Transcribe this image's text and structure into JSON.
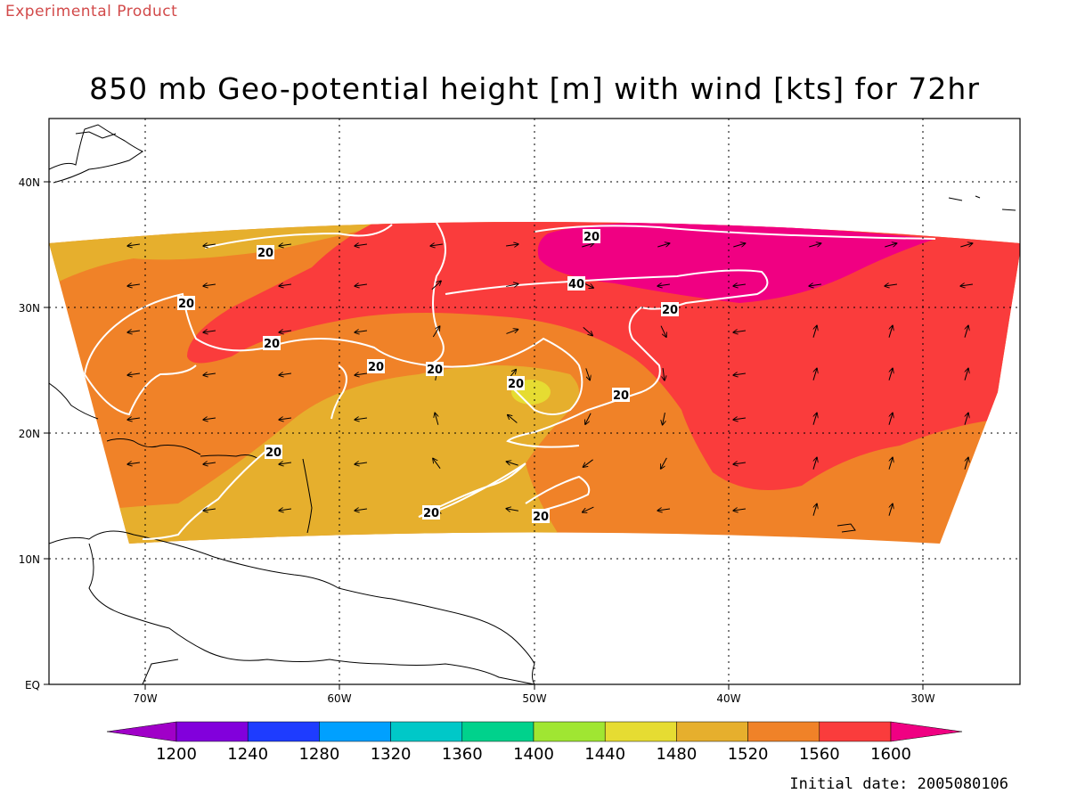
{
  "header": {
    "experimental": "Experimental Product",
    "title": "850 mb Geo-potential height [m] with wind [kts] for 72hr"
  },
  "footer": {
    "initial_date": "Initial date: 2005080106"
  },
  "axes": {
    "x_ticks": [
      "70W",
      "60W",
      "50W",
      "40W",
      "30W"
    ],
    "y_ticks": [
      "EQ",
      "10N",
      "20N",
      "30N",
      "40N"
    ],
    "lon_range": [
      -75,
      -25
    ],
    "lat_range": [
      0,
      45
    ],
    "grid": "dotted"
  },
  "colorbar": {
    "labels": [
      "1200",
      "1240",
      "1280",
      "1320",
      "1360",
      "1400",
      "1440",
      "1480",
      "1520",
      "1560",
      "1600"
    ],
    "colors": [
      "#a000c8",
      "#8200dc",
      "#1e3cff",
      "#00a0ff",
      "#00c8c8",
      "#00d28c",
      "#a0e632",
      "#e6dc32",
      "#e6af2d",
      "#f08228",
      "#fa3c3c",
      "#f00082"
    ]
  },
  "contour_labels": [
    "20",
    "20",
    "20",
    "20",
    "20",
    "20",
    "20",
    "20",
    "20",
    "40",
    "20",
    "20",
    "20"
  ]
}
